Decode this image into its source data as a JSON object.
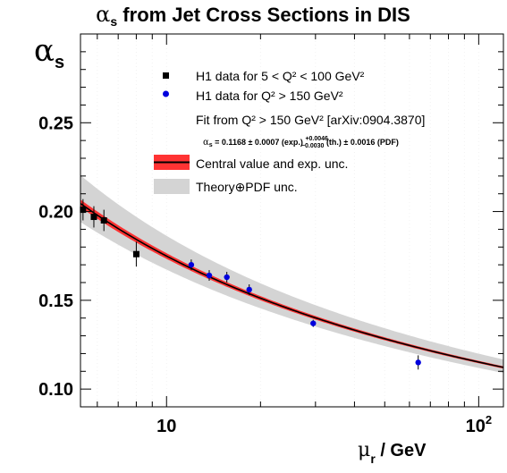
{
  "chart_data": {
    "type": "scatter",
    "title_symbol": "α",
    "title_sub": "s",
    "title_rest": " from Jet Cross Sections in DIS",
    "ylabel_symbol": "α",
    "ylabel_sub": "s",
    "xlabel_symbol": "μ",
    "xlabel_sub": "r",
    "xlabel_rest": " / GeV",
    "xscale": "log",
    "xlim": [
      5.3,
      120
    ],
    "ylim": [
      0.09,
      0.3
    ],
    "x_ticks": [
      {
        "value": 10,
        "label": "10",
        "sup": ""
      },
      {
        "value": 100,
        "label": "10",
        "sup": "2"
      }
    ],
    "y_ticks": [
      {
        "value": 0.1,
        "label": "0.10"
      },
      {
        "value": 0.15,
        "label": "0.15"
      },
      {
        "value": 0.2,
        "label": "0.20"
      },
      {
        "value": 0.25,
        "label": "0.25"
      }
    ],
    "series": [
      {
        "name": "H1 data for 5 < Q² < 100 GeV²",
        "marker": "square",
        "color": "#000000",
        "points": [
          {
            "x": 5.4,
            "y": 0.201,
            "err": 0.006
          },
          {
            "x": 5.85,
            "y": 0.197,
            "err": 0.006
          },
          {
            "x": 6.3,
            "y": 0.195,
            "err": 0.006
          },
          {
            "x": 8.0,
            "y": 0.176,
            "err": 0.007
          }
        ]
      },
      {
        "name": "H1 data for Q² > 150 GeV²",
        "marker": "circle",
        "color": "#0000dd",
        "points": [
          {
            "x": 12.0,
            "y": 0.17,
            "err": 0.003
          },
          {
            "x": 13.7,
            "y": 0.164,
            "err": 0.003
          },
          {
            "x": 15.6,
            "y": 0.163,
            "err": 0.003
          },
          {
            "x": 18.4,
            "y": 0.156,
            "err": 0.003
          },
          {
            "x": 29.5,
            "y": 0.137,
            "err": 0.002
          },
          {
            "x": 64.0,
            "y": 0.115,
            "err": 0.004
          }
        ]
      }
    ],
    "fit": {
      "label_lines": [
        "Fit from Q² > 150 GeV² [arXiv:0904.3870]"
      ],
      "formula_prefix": "α",
      "formula_sub": "s",
      "formula_main": " = 0.1168 ± 0.0007 (exp.) ",
      "formula_up": "+0.0046",
      "formula_down": "−0.0030",
      "formula_tail": " (th.) ± 0.0016 (PDF)",
      "mz": 91.19,
      "alpha_mz": 0.1168,
      "exp_band_halfwidth": 0.0007,
      "theory_up": 0.0046,
      "theory_down": 0.003,
      "pdf": 0.0016,
      "central_color": "#000000",
      "exp_band_color": "#ff3333",
      "theory_band_color": "#d4d4d4"
    },
    "legend": {
      "placement": "top-right",
      "entries": [
        {
          "key": "h1_low",
          "text": "H1 data for 5 < Q² < 100 GeV²"
        },
        {
          "key": "h1_high",
          "text": "H1 data for Q² > 150 GeV²"
        },
        {
          "key": "central",
          "text": "Central value and exp. unc."
        },
        {
          "key": "theory",
          "text": "Theory⊕PDF unc."
        }
      ]
    }
  }
}
